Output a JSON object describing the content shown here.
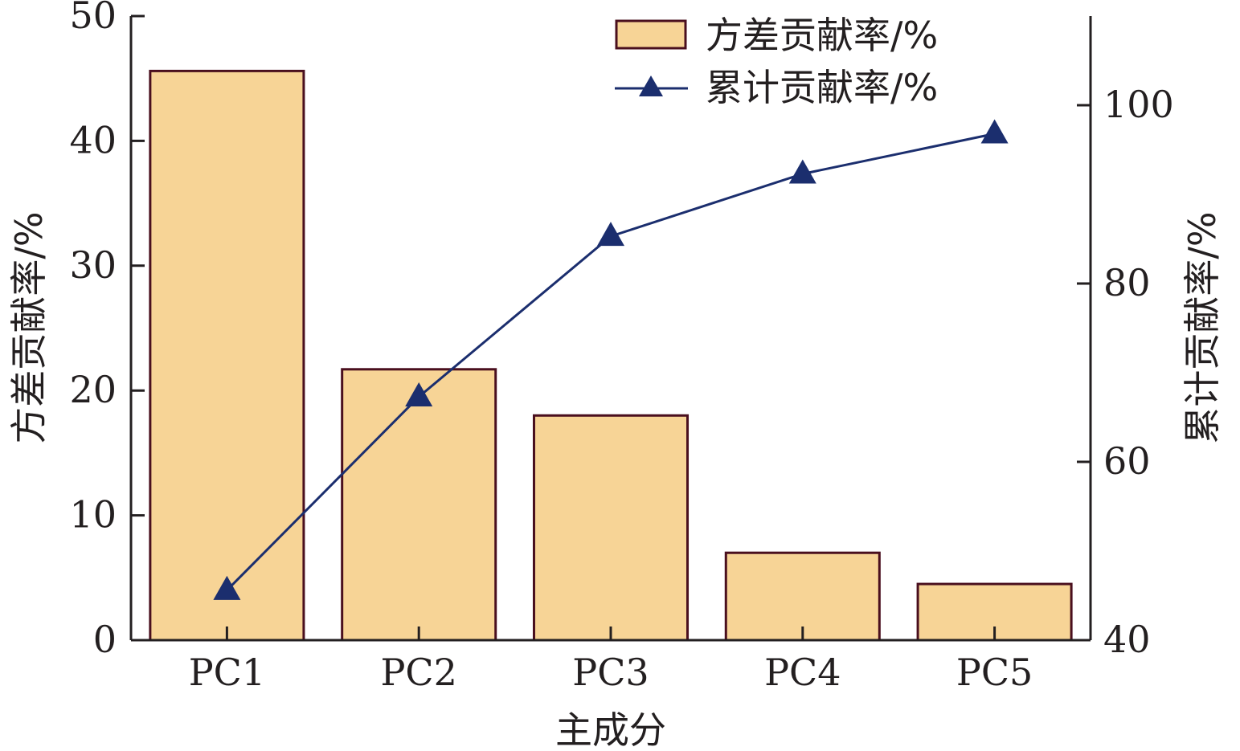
{
  "chart_data": {
    "type": "bar",
    "categories": [
      "PC1",
      "PC2",
      "PC3",
      "PC4",
      "PC5"
    ],
    "series": [
      {
        "name": "方差贡献率/%",
        "type": "bar",
        "axis": "left",
        "values": [
          45.6,
          21.7,
          18.0,
          7.0,
          4.5
        ]
      },
      {
        "name": "累计贡献率/%",
        "type": "line",
        "marker": "triangle",
        "axis": "right",
        "values": [
          45.6,
          67.3,
          85.3,
          92.3,
          96.8
        ]
      }
    ],
    "xlabel": "主成分",
    "ylabel": "方差贡献率/%",
    "y2label": "累计贡献率/%",
    "ylim": [
      0,
      50
    ],
    "y2lim": [
      40,
      110
    ],
    "yticks": [
      "0",
      "10",
      "20",
      "30",
      "40",
      "50"
    ],
    "y2ticks": [
      "40",
      "60",
      "80",
      "100"
    ],
    "grid": false,
    "legend_position": "top-right",
    "colors": {
      "bar_fill": "#f7d496",
      "bar_stroke": "#4a0f1e",
      "line": "#1b2e6e",
      "axis": "#231f20"
    }
  }
}
